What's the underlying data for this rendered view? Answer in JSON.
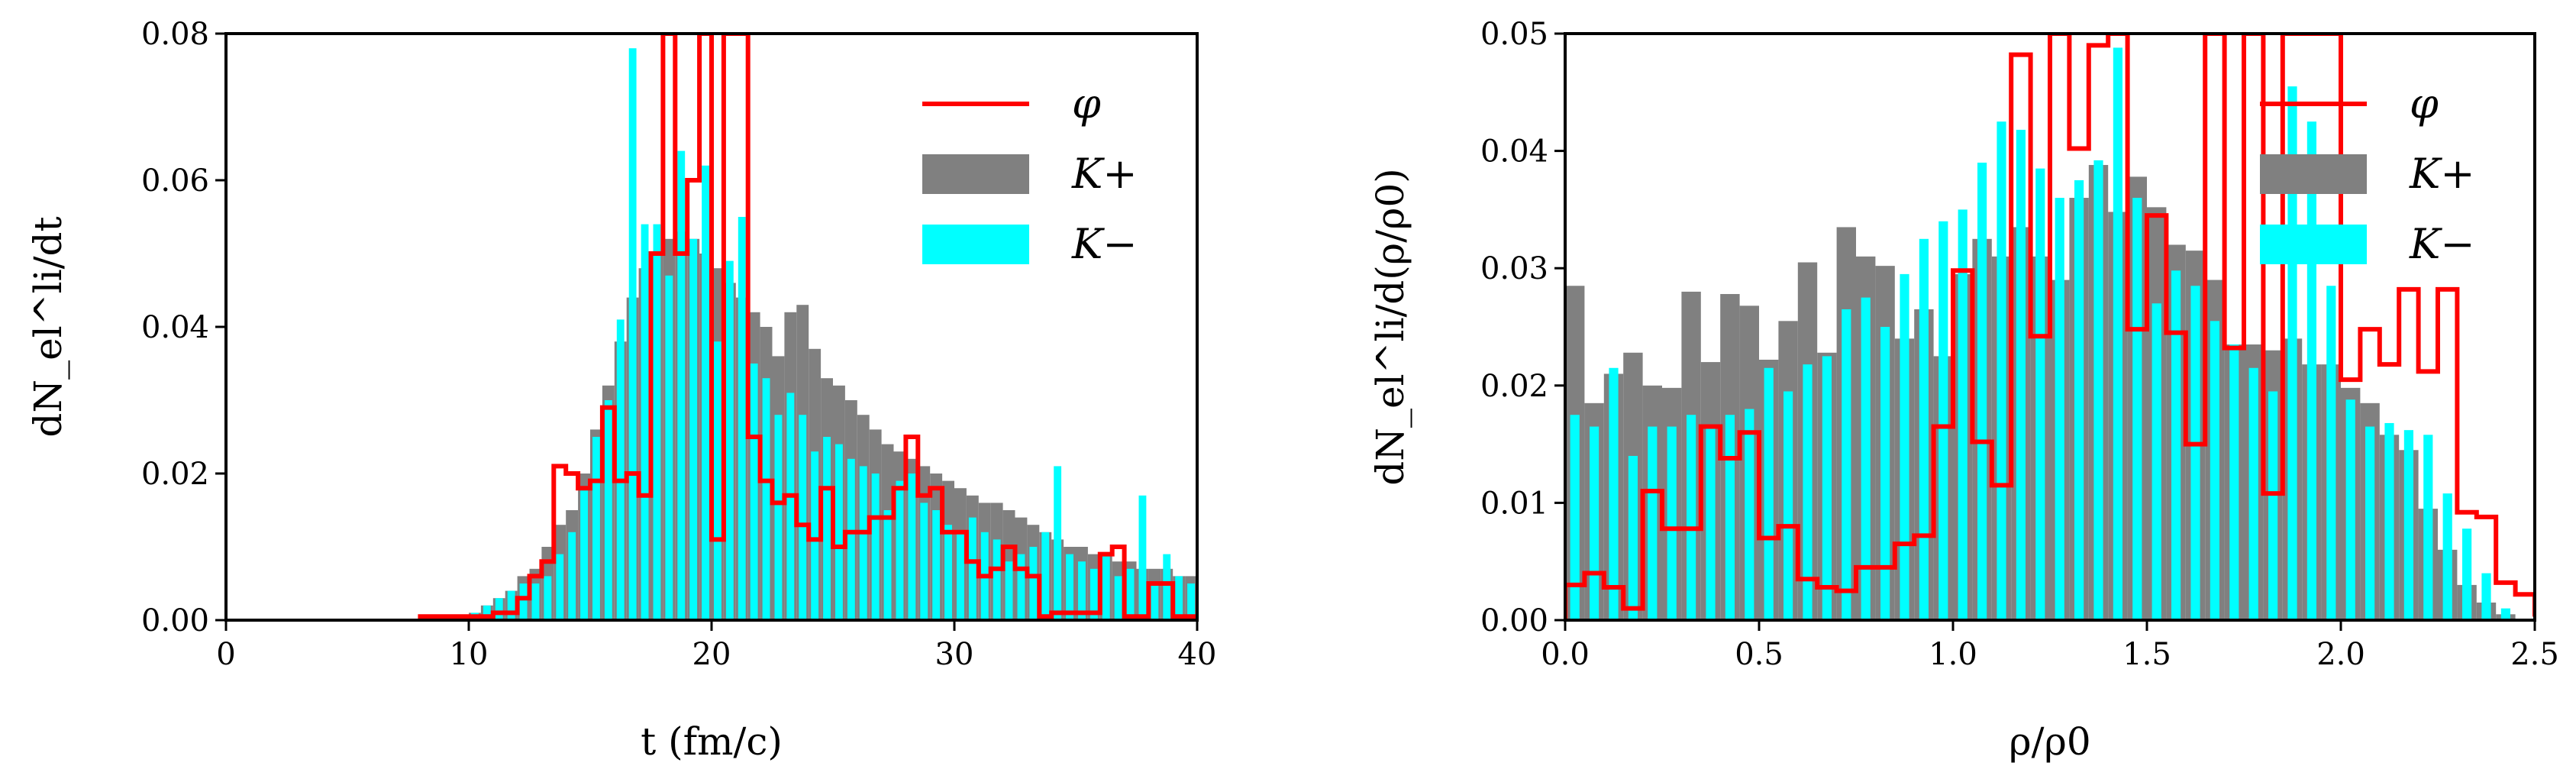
{
  "colors": {
    "phi": "#ff0000",
    "kplus": "#808080",
    "kminus": "#00ffff"
  },
  "chart_data": [
    {
      "type": "bar",
      "title": "",
      "xlabel": "t (fm/c)",
      "ylabel": "dN_el^li/dt",
      "xlim": [
        0,
        40
      ],
      "ylim": [
        0,
        0.08
      ],
      "xticks": [
        "0",
        "10",
        "20",
        "30",
        "40"
      ],
      "yticks": [
        "0.00",
        "0.02",
        "0.04",
        "0.06",
        "0.08"
      ],
      "legend": {
        "position": "top-right",
        "entries": [
          "φ",
          "K+",
          "K−"
        ]
      },
      "series": [
        {
          "name": "K+",
          "kind": "histogram",
          "x_start": 10,
          "bin_width": 0.5,
          "values": [
            0.001,
            0.002,
            0.003,
            0.004,
            0.006,
            0.007,
            0.01,
            0.013,
            0.015,
            0.02,
            0.026,
            0.032,
            0.038,
            0.044,
            0.048,
            0.05,
            0.052,
            0.053,
            0.052,
            0.05,
            0.048,
            0.046,
            0.044,
            0.042,
            0.04,
            0.036,
            0.042,
            0.043,
            0.037,
            0.033,
            0.032,
            0.03,
            0.028,
            0.026,
            0.024,
            0.023,
            0.022,
            0.021,
            0.02,
            0.019,
            0.018,
            0.017,
            0.016,
            0.016,
            0.015,
            0.014,
            0.013,
            0.012,
            0.011,
            0.01,
            0.01,
            0.009,
            0.009,
            0.008,
            0.008,
            0.007,
            0.007,
            0.007,
            0.006,
            0.006,
            0.005,
            0.005,
            0.005,
            0.005,
            0.004,
            0.004,
            0.004,
            0.004,
            0.003,
            0.003,
            0.003,
            0.003,
            0.002,
            0.002,
            0.002,
            0.002,
            0.002,
            0.002,
            0.002,
            0.002
          ]
        },
        {
          "name": "K−",
          "kind": "histogram",
          "x_start": 10,
          "bin_width": 0.5,
          "values": [
            0.001,
            0.002,
            0.003,
            0.004,
            0.005,
            0.005,
            0.006,
            0.009,
            0.012,
            0.018,
            0.025,
            0.03,
            0.041,
            0.078,
            0.054,
            0.054,
            0.047,
            0.064,
            0.052,
            0.062,
            0.038,
            0.049,
            0.055,
            0.035,
            0.033,
            0.028,
            0.031,
            0.028,
            0.023,
            0.025,
            0.024,
            0.022,
            0.021,
            0.02,
            0.015,
            0.019,
            0.02,
            0.016,
            0.015,
            0.013,
            0.012,
            0.014,
            0.012,
            0.011,
            0.008,
            0.009,
            0.01,
            0.012,
            0.021,
            0.009,
            0.008,
            0.007,
            0.009,
            0.006,
            0.007,
            0.017,
            0.005,
            0.009,
            0.006,
            0.005,
            0.005,
            0.005,
            0.004,
            0.006,
            0.005,
            0.004,
            0.004,
            0.003,
            0.004,
            0.003,
            0.003,
            0.003,
            0.003,
            0.003,
            0.004,
            0.002,
            0.002,
            0.002,
            0.002,
            0.002
          ]
        },
        {
          "name": "φ",
          "kind": "step",
          "x_start": 8,
          "bin_width": 0.5,
          "values": [
            0.0005,
            0.0005,
            0.0005,
            0.0005,
            0.0005,
            0.0005,
            0.001,
            0.001,
            0.003,
            0.006,
            0.008,
            0.021,
            0.02,
            0.018,
            0.019,
            0.029,
            0.019,
            0.02,
            0.017,
            0.05,
            0.08,
            0.05,
            0.06,
            0.08,
            0.011,
            0.08,
            0.08,
            0.025,
            0.019,
            0.016,
            0.017,
            0.013,
            0.011,
            0.018,
            0.01,
            0.012,
            0.012,
            0.014,
            0.014,
            0.018,
            0.025,
            0.017,
            0.018,
            0.012,
            0.012,
            0.008,
            0.006,
            0.007,
            0.01,
            0.007,
            0.006,
            0.0005,
            0.001,
            0.001,
            0.001,
            0.001,
            0.009,
            0.01,
            0.0005,
            0.0005,
            0.005,
            0.005,
            0.0005,
            0.0005,
            0.0005
          ]
        }
      ]
    },
    {
      "type": "bar",
      "title": "",
      "xlabel": "ρ/ρ0",
      "ylabel": "dN_el^li/d(ρ/ρ0)",
      "xlim": [
        0,
        2.5
      ],
      "ylim": [
        0,
        0.05
      ],
      "xticks": [
        "0.0",
        "0.5",
        "1.0",
        "1.5",
        "2.0",
        "2.5"
      ],
      "yticks": [
        "0.00",
        "0.01",
        "0.02",
        "0.03",
        "0.04",
        "0.05"
      ],
      "legend": {
        "position": "top-right",
        "entries": [
          "φ",
          "K+",
          "K−"
        ]
      },
      "series": [
        {
          "name": "K+",
          "kind": "histogram",
          "x_start": 0,
          "bin_width": 0.05,
          "values": [
            0.0285,
            0.0185,
            0.021,
            0.0228,
            0.02,
            0.0198,
            0.028,
            0.022,
            0.0278,
            0.0268,
            0.0222,
            0.0255,
            0.0305,
            0.0228,
            0.0335,
            0.031,
            0.0302,
            0.024,
            0.0265,
            0.0225,
            0.0295,
            0.0325,
            0.031,
            0.0335,
            0.031,
            0.029,
            0.036,
            0.0388,
            0.0348,
            0.0378,
            0.0352,
            0.032,
            0.0315,
            0.029,
            0.0235,
            0.0235,
            0.023,
            0.024,
            0.0218,
            0.0218,
            0.0198,
            0.0185,
            0.0158,
            0.0145,
            0.0095,
            0.006,
            0.003,
            0.0015,
            0.0005
          ]
        },
        {
          "name": "K−",
          "kind": "histogram",
          "x_start": 0,
          "bin_width": 0.05,
          "values": [
            0.0175,
            0.0165,
            0.0215,
            0.014,
            0.0165,
            0.0165,
            0.0175,
            0.0165,
            0.0175,
            0.018,
            0.0215,
            0.0195,
            0.0218,
            0.0225,
            0.0265,
            0.0275,
            0.025,
            0.0295,
            0.0325,
            0.034,
            0.035,
            0.039,
            0.0425,
            0.0418,
            0.0385,
            0.036,
            0.0375,
            0.0392,
            0.0488,
            0.036,
            0.027,
            0.0298,
            0.0285,
            0.0255,
            0.0235,
            0.0215,
            0.0195,
            0.0455,
            0.0425,
            0.0285,
            0.0188,
            0.0165,
            0.0168,
            0.0162,
            0.0158,
            0.0108,
            0.0078,
            0.004,
            0.001
          ]
        },
        {
          "name": "φ",
          "kind": "step",
          "x_start": 0,
          "bin_width": 0.05,
          "values": [
            0.003,
            0.004,
            0.0028,
            0.001,
            0.011,
            0.0078,
            0.0078,
            0.0165,
            0.0138,
            0.016,
            0.007,
            0.008,
            0.0035,
            0.0028,
            0.0025,
            0.0045,
            0.0045,
            0.0065,
            0.0072,
            0.0165,
            0.0298,
            0.0152,
            0.0115,
            0.0482,
            0.0242,
            0.0558,
            0.0402,
            0.049,
            0.0555,
            0.0248,
            0.0345,
            0.0245,
            0.015,
            0.0548,
            0.0232,
            0.0555,
            0.0108,
            0.0558,
            0.0508,
            0.0528,
            0.0205,
            0.0248,
            0.0218,
            0.0282,
            0.0212,
            0.0282,
            0.0092,
            0.0088,
            0.0032,
            0.0022,
            0.0005
          ]
        }
      ]
    }
  ]
}
